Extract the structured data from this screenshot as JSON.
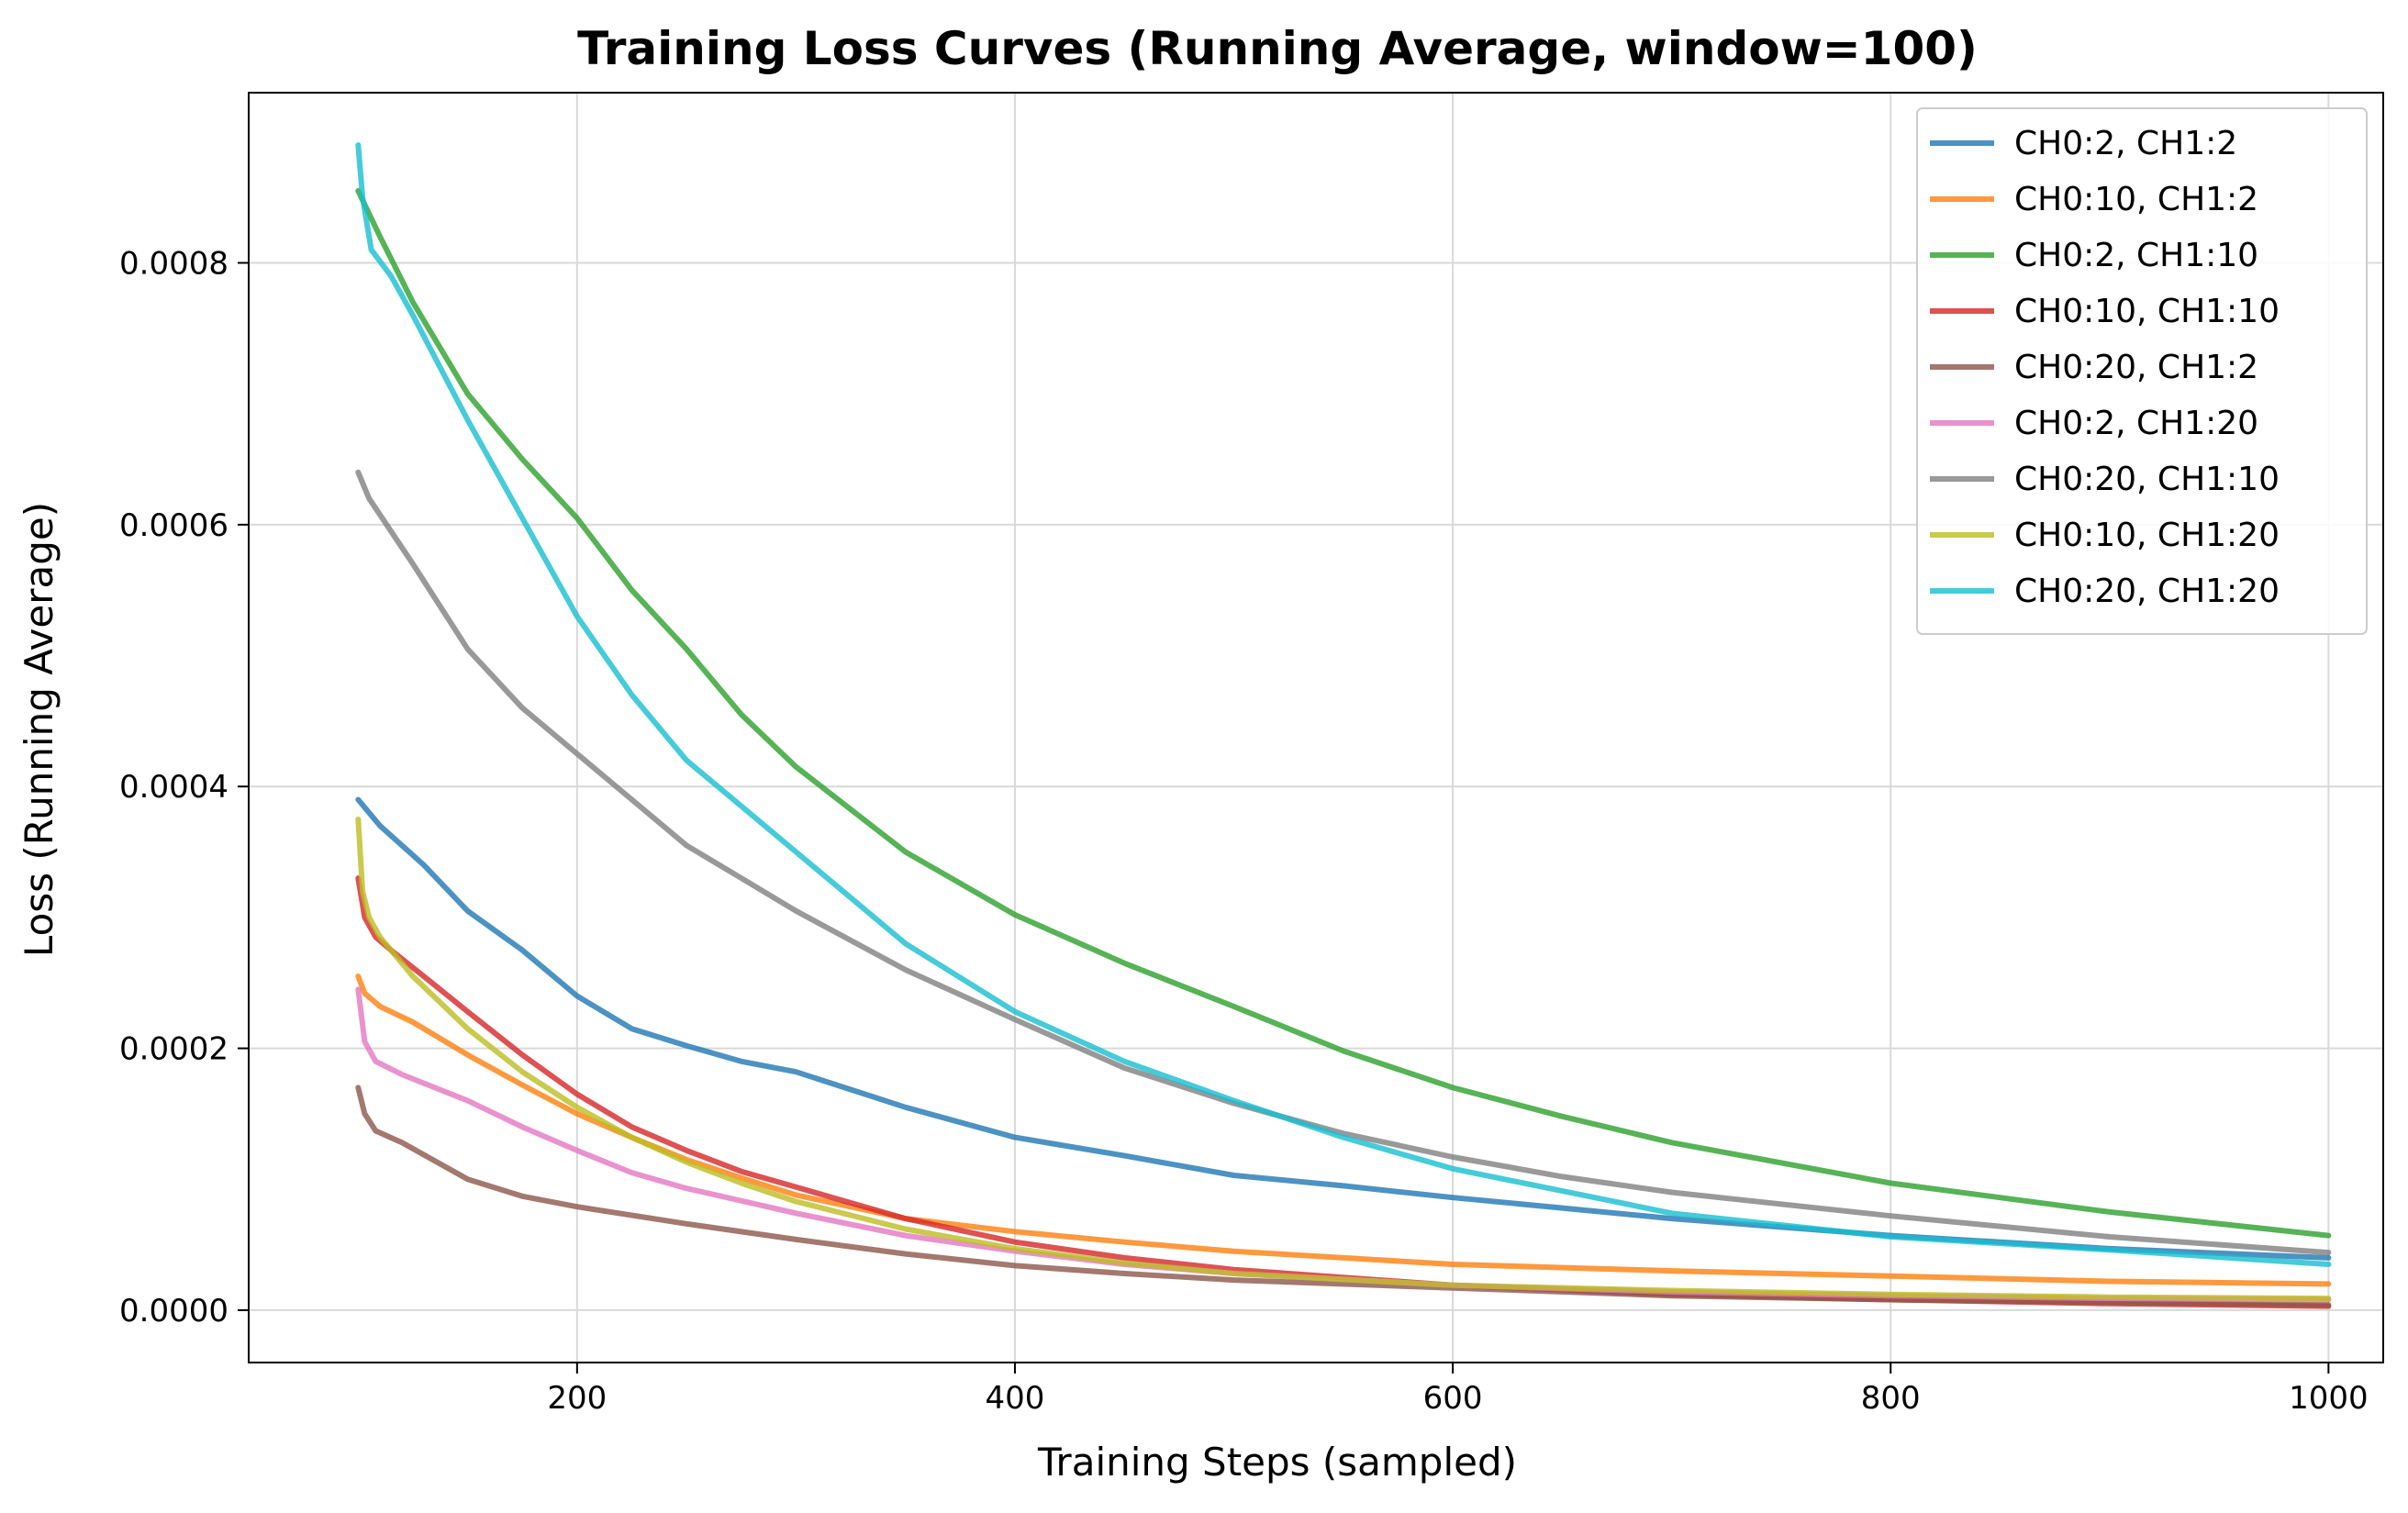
{
  "chart_data": {
    "type": "line",
    "title": "Training Loss Curves (Running Average, window=100)",
    "xlabel": "Training Steps (sampled)",
    "ylabel": "Loss (Running Average)",
    "xlim": [
      50,
      1025
    ],
    "ylim": [
      -4e-05,
      0.00093
    ],
    "xticks": [
      200,
      400,
      600,
      800,
      1000
    ],
    "xtick_labels": [
      "200",
      "400",
      "600",
      "800",
      "1000"
    ],
    "yticks": [
      0.0,
      0.0002,
      0.0004,
      0.0006,
      0.0008
    ],
    "ytick_labels": [
      "0.0000",
      "0.0002",
      "0.0004",
      "0.0006",
      "0.0008"
    ],
    "grid": true,
    "legend_position": "top-right",
    "series": [
      {
        "name": "CH0:2, CH1:2",
        "color": "#1f77b4",
        "x": [
          100,
          110,
          130,
          150,
          175,
          200,
          225,
          250,
          275,
          300,
          350,
          400,
          450,
          500,
          550,
          600,
          650,
          700,
          800,
          900,
          1000
        ],
        "y": [
          0.00039,
          0.00037,
          0.00034,
          0.000305,
          0.000275,
          0.00024,
          0.000215,
          0.000202,
          0.00019,
          0.000182,
          0.000155,
          0.000132,
          0.000118,
          0.000103,
          9.5e-05,
          8.6e-05,
          7.8e-05,
          7e-05,
          5.7e-05,
          4.7e-05,
          4e-05
        ]
      },
      {
        "name": "CH0:10, CH1:2",
        "color": "#ff7f0e",
        "x": [
          100,
          103,
          110,
          125,
          150,
          175,
          200,
          225,
          250,
          275,
          300,
          350,
          400,
          450,
          500,
          600,
          700,
          800,
          900,
          1000
        ],
        "y": [
          0.000255,
          0.000242,
          0.000232,
          0.00022,
          0.000195,
          0.000172,
          0.00015,
          0.000132,
          0.000115,
          0.000101,
          8.8e-05,
          7e-05,
          6e-05,
          5.2e-05,
          4.5e-05,
          3.5e-05,
          3e-05,
          2.6e-05,
          2.2e-05,
          2e-05
        ]
      },
      {
        "name": "CH0:2, CH1:10",
        "color": "#2ca02c",
        "x": [
          100,
          110,
          125,
          150,
          175,
          200,
          225,
          250,
          275,
          300,
          350,
          400,
          450,
          500,
          550,
          600,
          650,
          700,
          800,
          900,
          1000
        ],
        "y": [
          0.000855,
          0.00082,
          0.00077,
          0.0007,
          0.00065,
          0.000605,
          0.00055,
          0.000505,
          0.000455,
          0.000415,
          0.00035,
          0.000302,
          0.000265,
          0.000232,
          0.000198,
          0.00017,
          0.000148,
          0.000128,
          9.7e-05,
          7.5e-05,
          5.7e-05
        ]
      },
      {
        "name": "CH0:10, CH1:10",
        "color": "#d62728",
        "x": [
          100,
          103,
          108,
          115,
          130,
          150,
          175,
          200,
          225,
          250,
          275,
          300,
          350,
          400,
          450,
          500,
          600,
          700,
          800,
          900,
          1000
        ],
        "y": [
          0.00033,
          0.0003,
          0.000285,
          0.000275,
          0.000255,
          0.000228,
          0.000195,
          0.000165,
          0.00014,
          0.000122,
          0.000106,
          9.4e-05,
          7e-05,
          5.2e-05,
          4e-05,
          3.1e-05,
          1.9e-05,
          1.2e-05,
          8e-06,
          5e-06,
          3e-06
        ]
      },
      {
        "name": "CH0:20, CH1:2",
        "color": "#8c564b",
        "x": [
          100,
          103,
          108,
          120,
          150,
          175,
          200,
          250,
          300,
          350,
          400,
          450,
          500,
          600,
          700,
          800,
          900,
          1000
        ],
        "y": [
          0.00017,
          0.00015,
          0.000137,
          0.000128,
          0.0001,
          8.7e-05,
          7.9e-05,
          6.6e-05,
          5.4e-05,
          4.3e-05,
          3.4e-05,
          2.8e-05,
          2.3e-05,
          1.7e-05,
          1.1e-05,
          8e-06,
          6e-06,
          4e-06
        ]
      },
      {
        "name": "CH0:2, CH1:20",
        "color": "#e377c2",
        "x": [
          100,
          103,
          108,
          120,
          150,
          175,
          200,
          225,
          250,
          300,
          350,
          400,
          450,
          500,
          600,
          700,
          800,
          900,
          1000
        ],
        "y": [
          0.000245,
          0.000205,
          0.00019,
          0.00018,
          0.00016,
          0.00014,
          0.000122,
          0.000105,
          9.3e-05,
          7.4e-05,
          5.7e-05,
          4.5e-05,
          3.5e-05,
          2.8e-05,
          1.9e-05,
          1.4e-05,
          1.1e-05,
          9e-06,
          8e-06
        ]
      },
      {
        "name": "CH0:20, CH1:10",
        "color": "#7f7f7f",
        "x": [
          100,
          105,
          125,
          150,
          175,
          200,
          225,
          250,
          275,
          300,
          350,
          400,
          450,
          500,
          550,
          600,
          650,
          700,
          800,
          900,
          1000
        ],
        "y": [
          0.00064,
          0.00062,
          0.00057,
          0.000505,
          0.00046,
          0.000425,
          0.00039,
          0.000355,
          0.00033,
          0.000305,
          0.00026,
          0.000222,
          0.000185,
          0.000158,
          0.000135,
          0.000117,
          0.000102,
          9e-05,
          7.2e-05,
          5.6e-05,
          4.4e-05
        ]
      },
      {
        "name": "CH0:10, CH1:20",
        "color": "#bcbd22",
        "x": [
          100,
          102,
          105,
          110,
          125,
          150,
          175,
          200,
          225,
          250,
          275,
          300,
          350,
          400,
          450,
          500,
          600,
          700,
          800,
          900,
          1000
        ],
        "y": [
          0.000375,
          0.00032,
          0.0003,
          0.000285,
          0.000255,
          0.000215,
          0.000182,
          0.000155,
          0.000132,
          0.000113,
          9.7e-05,
          8.3e-05,
          6.2e-05,
          4.7e-05,
          3.6e-05,
          2.8e-05,
          1.9e-05,
          1.5e-05,
          1.2e-05,
          1e-05,
          9e-06
        ]
      },
      {
        "name": "CH0:20, CH1:20",
        "color": "#17becf",
        "x": [
          100,
          102,
          106,
          115,
          125,
          150,
          175,
          200,
          225,
          250,
          275,
          300,
          350,
          400,
          450,
          500,
          550,
          600,
          700,
          800,
          900,
          1000
        ],
        "y": [
          0.00089,
          0.00085,
          0.00081,
          0.00079,
          0.00076,
          0.00068,
          0.000605,
          0.00053,
          0.00047,
          0.00042,
          0.000385,
          0.00035,
          0.00028,
          0.000228,
          0.00019,
          0.00016,
          0.000132,
          0.000108,
          7.4e-05,
          5.6e-05,
          4.6e-05,
          3.5e-05
        ]
      }
    ]
  }
}
